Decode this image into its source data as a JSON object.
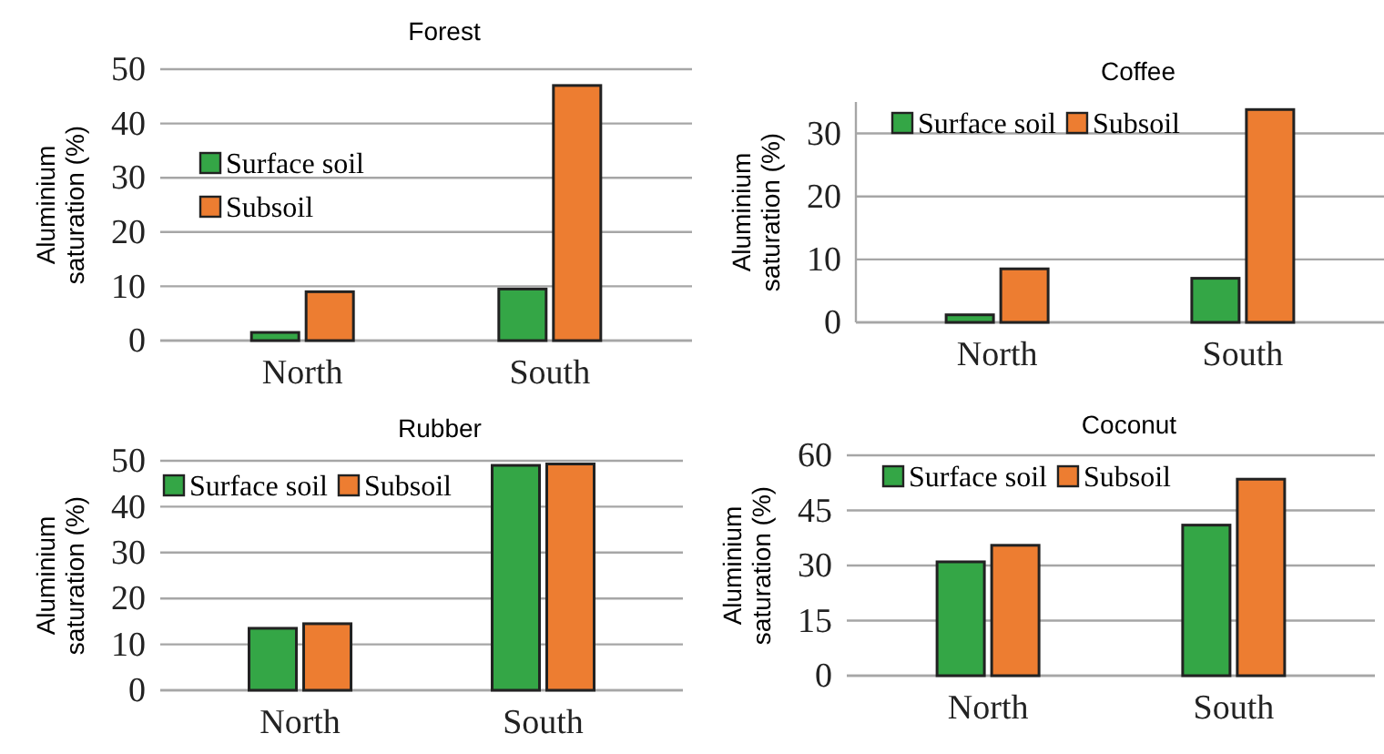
{
  "chart_data": [
    {
      "type": "bar",
      "title": "Forest",
      "ylabel": "Aluminium saturation (%)",
      "categories": [
        "North",
        "South"
      ],
      "ylim": [
        0,
        50
      ],
      "yticks": [
        0,
        10,
        20,
        30,
        40,
        50
      ],
      "grid": "y",
      "legend": "left",
      "series": [
        {
          "name": "Surface soil",
          "color": "#34a646",
          "values": [
            1.5,
            9.5
          ]
        },
        {
          "name": "Subsoil",
          "color": "#ed7d31",
          "values": [
            9,
            47
          ]
        }
      ]
    },
    {
      "type": "bar",
      "title": "Coffee",
      "ylabel": "Aluminium saturation (%)",
      "categories": [
        "North",
        "South"
      ],
      "ylim": [
        0,
        35
      ],
      "yticks": [
        0,
        10,
        20,
        30
      ],
      "grid": "y",
      "legend": "top",
      "series": [
        {
          "name": "Surface soil",
          "color": "#34a646",
          "values": [
            1.2,
            7
          ]
        },
        {
          "name": "Subsoil",
          "color": "#ed7d31",
          "values": [
            8.5,
            33.8
          ]
        }
      ]
    },
    {
      "type": "bar",
      "title": "Rubber",
      "ylabel": "Aluminium saturation (%)",
      "categories": [
        "North",
        "South"
      ],
      "ylim": [
        0,
        50
      ],
      "yticks": [
        0,
        10,
        20,
        30,
        40,
        50
      ],
      "grid": "y",
      "legend": "top left",
      "series": [
        {
          "name": "Surface soil",
          "color": "#34a646",
          "values": [
            13.5,
            49
          ]
        },
        {
          "name": "Subsoil",
          "color": "#ed7d31",
          "values": [
            14.5,
            49.3
          ]
        }
      ]
    },
    {
      "type": "bar",
      "title": "Coconut",
      "ylabel": "Aluminium saturation (%)",
      "categories": [
        "North",
        "South"
      ],
      "ylim": [
        0,
        60
      ],
      "yticks": [
        0,
        15,
        30,
        45,
        60
      ],
      "grid": "y",
      "legend": "top",
      "series": [
        {
          "name": "Surface soil",
          "color": "#34a646",
          "values": [
            31,
            41
          ]
        },
        {
          "name": "Subsoil",
          "color": "#ed7d31",
          "values": [
            35.5,
            53.5
          ]
        }
      ]
    }
  ]
}
